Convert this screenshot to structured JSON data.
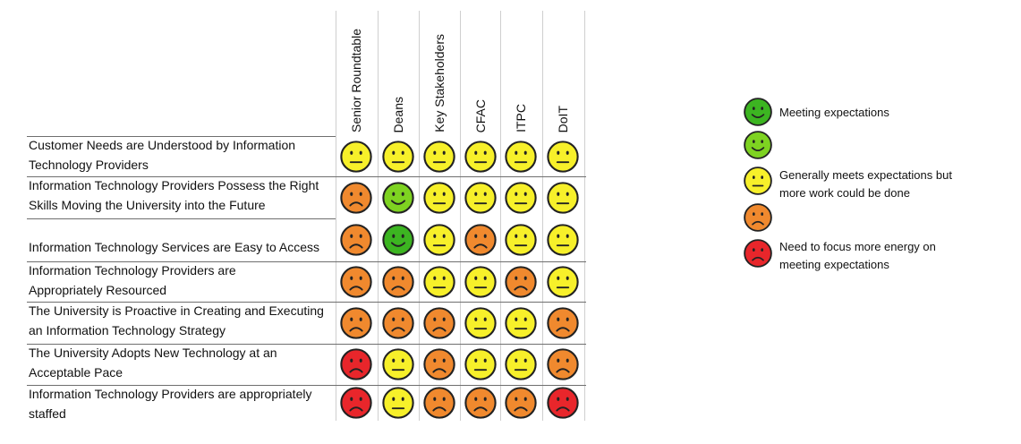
{
  "colors": {
    "green_dark": "#3cb521",
    "green_light": "#7ed321",
    "yellow": "#f7f02a",
    "orange": "#f0892e",
    "red": "#e8262b",
    "outline": "#222222"
  },
  "columns": [
    {
      "label": "Senior Roundtable"
    },
    {
      "label": "Deans"
    },
    {
      "label": "Key Stakeholders"
    },
    {
      "label": "CFAC"
    },
    {
      "label": "ITPC"
    },
    {
      "label": "DoIT"
    }
  ],
  "rows": [
    {
      "lines": [
        "Customer Needs are Understood by Information",
        "Technology Providers"
      ],
      "ratings": [
        "yellow",
        "yellow",
        "yellow",
        "yellow",
        "yellow",
        "yellow"
      ]
    },
    {
      "lines": [
        "Information Technology Providers Possess the Right",
        "Skills Moving the University into the Future"
      ],
      "ratings": [
        "orange",
        "green_light",
        "yellow",
        "yellow",
        "yellow",
        "yellow"
      ]
    },
    {
      "lines": [
        "",
        "Information Technology Services are Easy to Access"
      ],
      "ratings": [
        "orange",
        "green_dark",
        "yellow",
        "orange",
        "yellow",
        "yellow"
      ]
    },
    {
      "lines": [
        "Information Technology Providers are",
        "Appropriately Resourced"
      ],
      "ratings": [
        "orange",
        "orange",
        "yellow",
        "yellow",
        "orange",
        "yellow"
      ]
    },
    {
      "lines": [
        "The University is Proactive in Creating and Executing",
        "an Information Technology Strategy"
      ],
      "ratings": [
        "orange",
        "orange",
        "orange",
        "yellow",
        "yellow",
        "orange"
      ]
    },
    {
      "lines": [
        "The University Adopts New Technology at an",
        "Acceptable Pace"
      ],
      "ratings": [
        "red",
        "yellow",
        "orange",
        "yellow",
        "yellow",
        "orange"
      ]
    },
    {
      "lines": [
        "Information Technology Providers are appropriately",
        "staffed"
      ],
      "ratings": [
        "red",
        "yellow",
        "orange",
        "orange",
        "orange",
        "red"
      ]
    }
  ],
  "legend": [
    {
      "rating": "green_dark",
      "lines": [
        "Meeting expectations"
      ]
    },
    {
      "rating": "green_light",
      "lines": []
    },
    {
      "rating": "yellow",
      "lines": [
        "Generally meets expectations but",
        "more work could be done"
      ]
    },
    {
      "rating": "orange",
      "lines": []
    },
    {
      "rating": "red",
      "lines": [
        "Need to focus more energy on",
        "meeting expectations"
      ]
    }
  ],
  "icon_names": {
    "green_dark": "smile-face-dark-green-icon",
    "green_light": "smile-face-light-green-icon",
    "yellow": "neutral-face-yellow-icon",
    "orange": "frown-face-orange-icon",
    "red": "frown-face-red-icon"
  }
}
